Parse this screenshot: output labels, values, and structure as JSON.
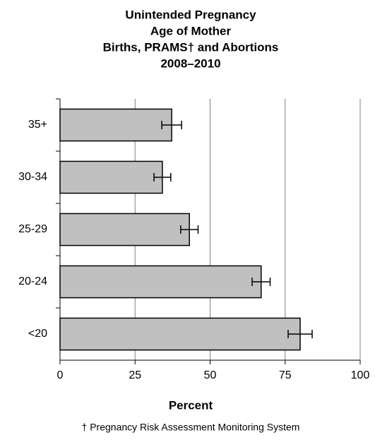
{
  "chart_data": {
    "type": "bar",
    "orientation": "horizontal",
    "title": [
      "Unintended Pregnancy",
      "Age of Mother",
      "Births, PRAMS† and Abortions",
      "2008–2010"
    ],
    "categories": [
      "35+",
      "30-34",
      "25-29",
      "20-24",
      "<20"
    ],
    "values": [
      37.2,
      34.1,
      43.1,
      67,
      80
    ],
    "errors": [
      3.3,
      2.8,
      2.9,
      3,
      4
    ],
    "color": "#c0c0c0",
    "xlabel": "Percent",
    "xlim": [
      0,
      100
    ],
    "xticks": [
      0,
      25,
      50,
      75,
      100
    ],
    "grid": true,
    "footnote": "† Pregnancy Risk Assessment Monitoring System"
  }
}
